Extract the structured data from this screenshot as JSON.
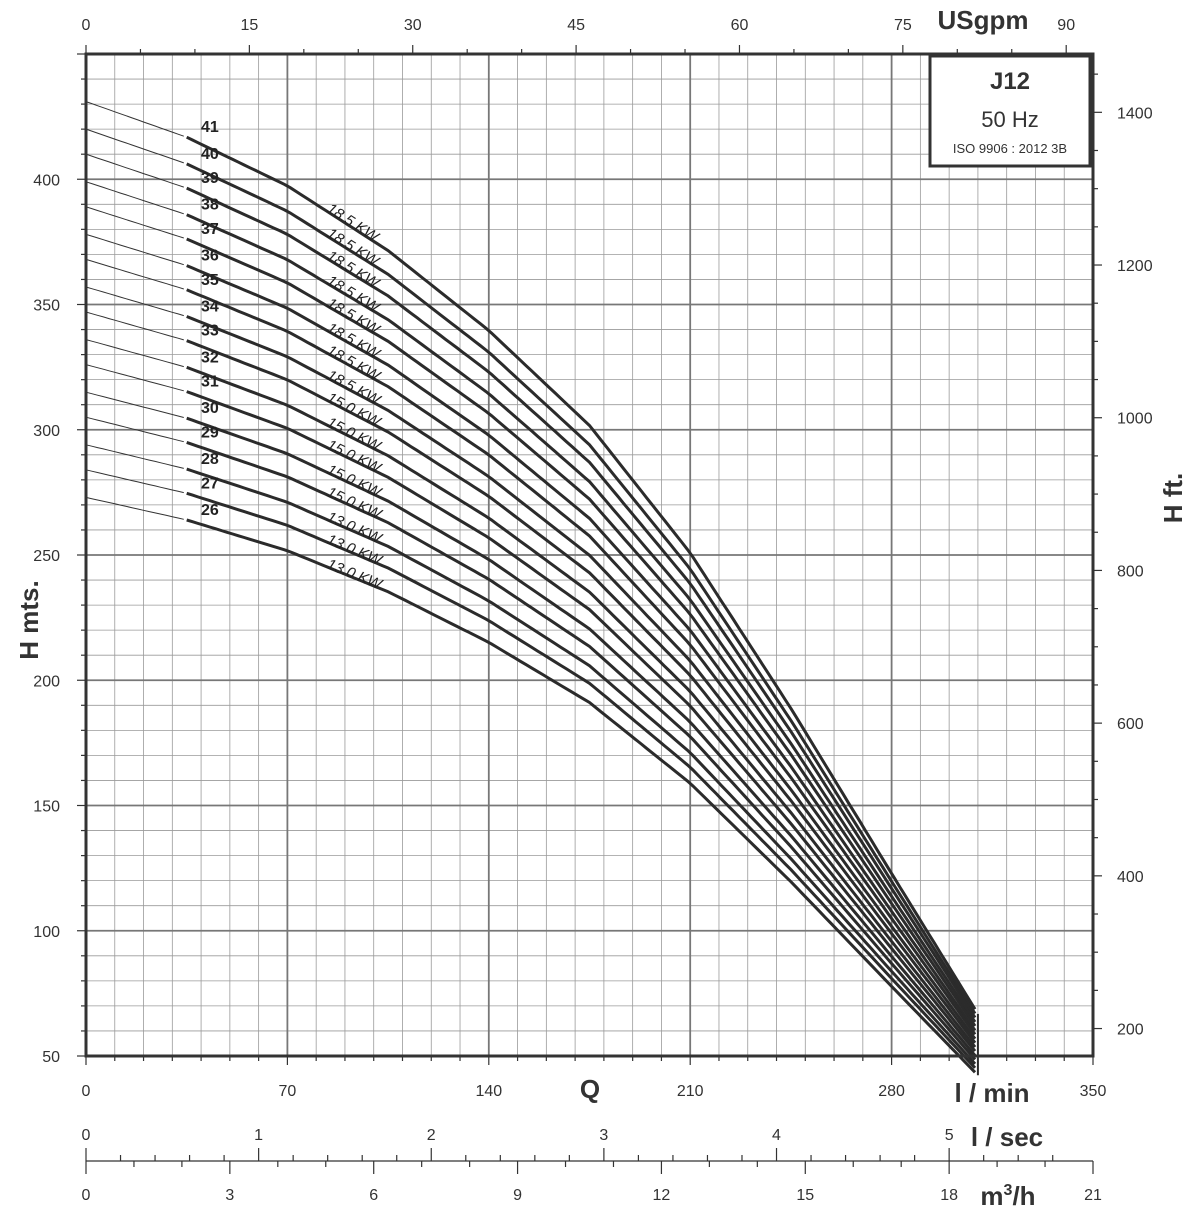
{
  "chart_data": {
    "type": "line",
    "title": "J12",
    "frequency": "50 Hz",
    "standard": "ISO 9906 : 2012 3B",
    "grid": true,
    "xlabel": "Q",
    "ylabel": "H mts.",
    "ylabel_right": "H ft.",
    "xlim": [
      0,
      350
    ],
    "ylim": [
      50,
      450
    ],
    "axes": {
      "top": {
        "unit": "USgpm",
        "ticks": [
          "0",
          "15",
          "30",
          "45",
          "60",
          "75",
          "90"
        ],
        "values": [
          0,
          15,
          30,
          45,
          60,
          75,
          90
        ]
      },
      "bottom_lmin": {
        "unit": "l / min",
        "ticks": [
          "0",
          "70",
          "140",
          "210",
          "280",
          "350"
        ],
        "values": [
          0,
          70,
          140,
          210,
          280,
          350
        ]
      },
      "bottom_lsec": {
        "unit": "l / sec",
        "ticks": [
          "0",
          "1",
          "2",
          "3",
          "4",
          "5"
        ],
        "values": [
          0,
          1,
          2,
          3,
          4,
          5
        ]
      },
      "bottom_m3h": {
        "unit": "m3/h",
        "unit_base": "m",
        "unit_sup": "3",
        "unit_suffix": "/h",
        "ticks": [
          "0",
          "3",
          "6",
          "9",
          "12",
          "15",
          "18",
          "21"
        ],
        "values": [
          0,
          3,
          6,
          9,
          12,
          15,
          18,
          21
        ]
      },
      "left": {
        "unit": "H mts.",
        "ticks": [
          "50",
          "100",
          "150",
          "200",
          "250",
          "300",
          "350",
          "400"
        ],
        "values": [
          50,
          100,
          150,
          200,
          250,
          300,
          350,
          400
        ]
      },
      "right": {
        "unit": "H ft.",
        "ticks": [
          "200",
          "400",
          "600",
          "800",
          "1000",
          "1200",
          "1400"
        ],
        "values": [
          200,
          400,
          600,
          800,
          1000,
          1200,
          1400
        ]
      }
    },
    "shape": {
      "flow_points": [
        0,
        35,
        70,
        105,
        140,
        175,
        210,
        245,
        280,
        310
      ],
      "ratios": [
        1.0,
        0.967,
        0.922,
        0.862,
        0.788,
        0.7,
        0.582,
        0.438,
        0.285,
        0.155
      ]
    },
    "series": [
      {
        "name": "41",
        "kw": "18.5 KW",
        "h0": 431
      },
      {
        "name": "40",
        "kw": "18.5 KW",
        "h0": 420
      },
      {
        "name": "39",
        "kw": "18.5 KW",
        "h0": 410
      },
      {
        "name": "38",
        "kw": "18.5 KW",
        "h0": 399
      },
      {
        "name": "37",
        "kw": "18.5 KW",
        "h0": 389
      },
      {
        "name": "36",
        "kw": "18.5 KW",
        "h0": 378
      },
      {
        "name": "35",
        "kw": "18.5 KW",
        "h0": 368
      },
      {
        "name": "34",
        "kw": "18.5 KW",
        "h0": 357
      },
      {
        "name": "33",
        "kw": "15.0 KW",
        "h0": 347
      },
      {
        "name": "32",
        "kw": "15.0 KW",
        "h0": 336
      },
      {
        "name": "31",
        "kw": "15.0 KW",
        "h0": 326
      },
      {
        "name": "30",
        "kw": "15.0 KW",
        "h0": 315
      },
      {
        "name": "29",
        "kw": "15.0 KW",
        "h0": 305
      },
      {
        "name": "28",
        "kw": "13.0 KW",
        "h0": 294
      },
      {
        "name": "27",
        "kw": "13.0 KW",
        "h0": 284
      },
      {
        "name": "26",
        "kw": "13.0 KW",
        "h0": 273
      }
    ]
  }
}
